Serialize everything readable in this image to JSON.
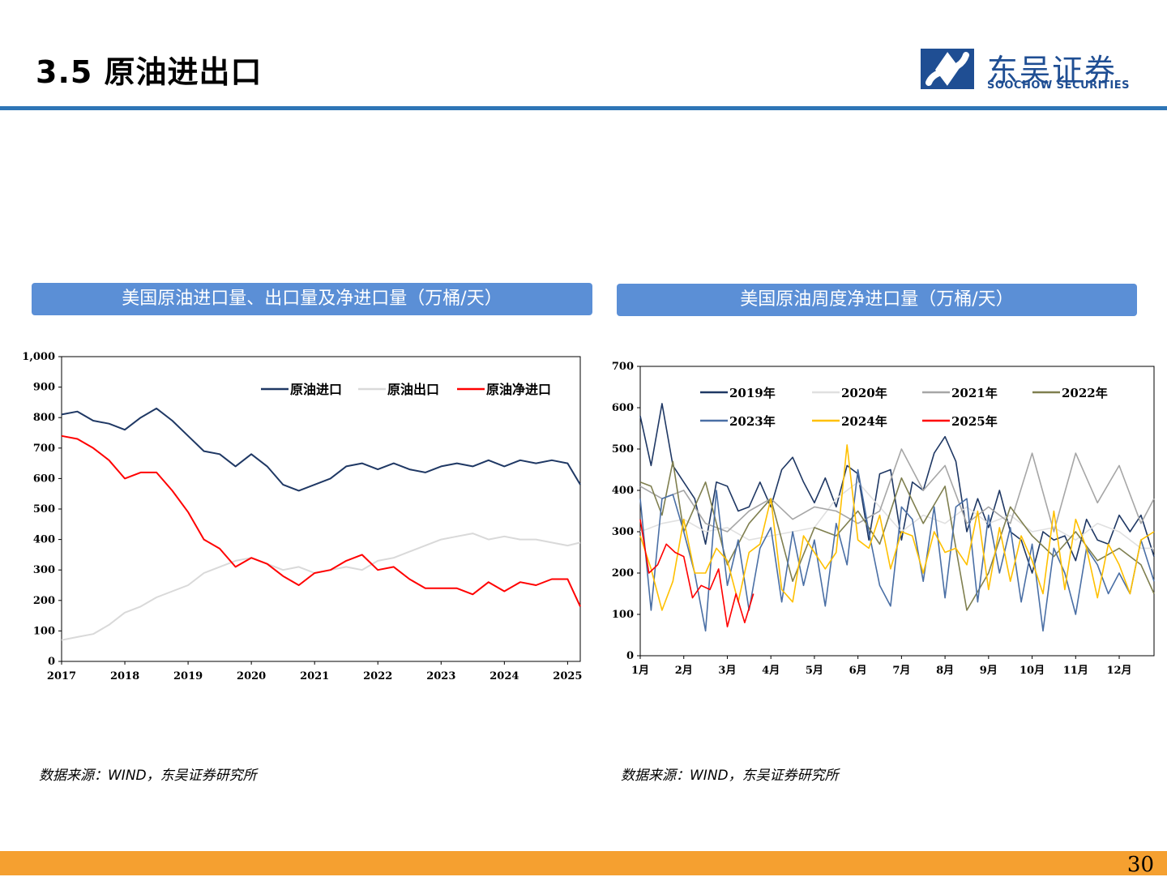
{
  "header": {
    "title": "3.5 原油进出口",
    "logo_cn": "东吴证券",
    "logo_en": "SOOCHOW SECURITIES",
    "rule_color": "#2e75b6"
  },
  "panels": [
    {
      "title": "美国原油进口量、出口量及净进口量（万桶/天）",
      "source": "数据来源：WIND，东吴证券研究所"
    },
    {
      "title": "美国原油周度净进口量（万桶/天）",
      "source": "数据来源：WIND，东吴证券研究所"
    }
  ],
  "footer": {
    "page_number": "30",
    "bar_color": "#f5a030"
  },
  "chart_data": [
    {
      "type": "line",
      "xlabel": "",
      "ylabel": "",
      "x_ticks": [
        "2017",
        "2018",
        "2019",
        "2020",
        "2021",
        "2022",
        "2023",
        "2024",
        "2025"
      ],
      "xlim": [
        2017.0,
        2025.2
      ],
      "ylim": [
        0,
        1000
      ],
      "y_ticks": [
        "0",
        "100",
        "200",
        "300",
        "400",
        "500",
        "600",
        "700",
        "800",
        "900",
        "1,000"
      ],
      "legend": "top-right",
      "grid": false,
      "series": [
        {
          "name": "原油进口",
          "color": "#1f3864",
          "x": [
            2017.0,
            2017.25,
            2017.5,
            2017.75,
            2018.0,
            2018.25,
            2018.5,
            2018.75,
            2019.0,
            2019.25,
            2019.5,
            2019.75,
            2020.0,
            2020.25,
            2020.5,
            2020.75,
            2021.0,
            2021.25,
            2021.5,
            2021.75,
            2022.0,
            2022.25,
            2022.5,
            2022.75,
            2023.0,
            2023.25,
            2023.5,
            2023.75,
            2024.0,
            2024.25,
            2024.5,
            2024.75,
            2025.0,
            2025.2
          ],
          "values": [
            810,
            820,
            790,
            780,
            760,
            800,
            830,
            790,
            740,
            690,
            680,
            640,
            680,
            640,
            580,
            560,
            580,
            600,
            640,
            650,
            630,
            650,
            630,
            620,
            640,
            650,
            640,
            660,
            640,
            660,
            650,
            660,
            650,
            580
          ]
        },
        {
          "name": "原油出口",
          "color": "#d9d9d9",
          "x": [
            2017.0,
            2017.25,
            2017.5,
            2017.75,
            2018.0,
            2018.25,
            2018.5,
            2018.75,
            2019.0,
            2019.25,
            2019.5,
            2019.75,
            2020.0,
            2020.25,
            2020.5,
            2020.75,
            2021.0,
            2021.25,
            2021.5,
            2021.75,
            2022.0,
            2022.25,
            2022.5,
            2022.75,
            2023.0,
            2023.25,
            2023.5,
            2023.75,
            2024.0,
            2024.25,
            2024.5,
            2024.75,
            2025.0,
            2025.2
          ],
          "values": [
            70,
            80,
            90,
            120,
            160,
            180,
            210,
            230,
            250,
            290,
            310,
            330,
            340,
            320,
            300,
            310,
            290,
            300,
            310,
            300,
            330,
            340,
            360,
            380,
            400,
            410,
            420,
            400,
            410,
            400,
            400,
            390,
            380,
            390
          ]
        },
        {
          "name": "原油净进口",
          "color": "#ff0000",
          "x": [
            2017.0,
            2017.25,
            2017.5,
            2017.75,
            2018.0,
            2018.25,
            2018.5,
            2018.75,
            2019.0,
            2019.25,
            2019.5,
            2019.75,
            2020.0,
            2020.25,
            2020.5,
            2020.75,
            2021.0,
            2021.25,
            2021.5,
            2021.75,
            2022.0,
            2022.25,
            2022.5,
            2022.75,
            2023.0,
            2023.25,
            2023.5,
            2023.75,
            2024.0,
            2024.25,
            2024.5,
            2024.75,
            2025.0,
            2025.2
          ],
          "values": [
            740,
            730,
            700,
            660,
            600,
            620,
            620,
            560,
            490,
            400,
            370,
            310,
            340,
            320,
            280,
            250,
            290,
            300,
            330,
            350,
            300,
            310,
            270,
            240,
            240,
            240,
            220,
            260,
            230,
            260,
            250,
            270,
            270,
            180
          ]
        }
      ]
    },
    {
      "type": "line",
      "xlabel": "",
      "ylabel": "",
      "x_ticks": [
        "1月",
        "2月",
        "3月",
        "4月",
        "5月",
        "6月",
        "7月",
        "8月",
        "9月",
        "10月",
        "11月",
        "12月"
      ],
      "xlim": [
        1,
        12.8
      ],
      "ylim": [
        0,
        700
      ],
      "y_ticks": [
        "0",
        "100",
        "200",
        "300",
        "400",
        "500",
        "600",
        "700"
      ],
      "legend": "top-left",
      "grid": false,
      "series": [
        {
          "name": "2019年",
          "color": "#1f3864",
          "x": [
            1,
            1.25,
            1.5,
            1.75,
            2,
            2.25,
            2.5,
            2.75,
            3,
            3.25,
            3.5,
            3.75,
            4,
            4.25,
            4.5,
            4.75,
            5,
            5.25,
            5.5,
            5.75,
            6,
            6.25,
            6.5,
            6.75,
            7,
            7.25,
            7.5,
            7.75,
            8,
            8.25,
            8.5,
            8.75,
            9,
            9.25,
            9.5,
            9.75,
            10,
            10.25,
            10.5,
            10.75,
            11,
            11.25,
            11.5,
            11.75,
            12,
            12.25,
            12.5,
            12.8
          ],
          "values": [
            580,
            460,
            610,
            460,
            420,
            380,
            270,
            420,
            410,
            350,
            360,
            420,
            360,
            450,
            480,
            420,
            370,
            430,
            360,
            460,
            440,
            280,
            440,
            450,
            280,
            420,
            400,
            490,
            530,
            470,
            300,
            380,
            310,
            400,
            300,
            280,
            200,
            300,
            280,
            290,
            230,
            330,
            280,
            270,
            340,
            300,
            340,
            240
          ]
        },
        {
          "name": "2020年",
          "color": "#e0e0e0",
          "x": [
            1,
            1.5,
            2,
            2.5,
            3,
            3.5,
            4,
            4.5,
            5,
            5.5,
            6,
            6.5,
            7,
            7.5,
            8,
            8.5,
            9,
            9.5,
            10,
            10.5,
            11,
            11.5,
            12,
            12.5,
            12.8
          ],
          "values": [
            300,
            320,
            330,
            300,
            310,
            280,
            290,
            300,
            310,
            380,
            420,
            360,
            300,
            340,
            320,
            360,
            320,
            340,
            300,
            310,
            280,
            320,
            300,
            260,
            260
          ]
        },
        {
          "name": "2021年",
          "color": "#a6a6a6",
          "x": [
            1,
            1.5,
            2,
            2.5,
            3,
            3.5,
            4,
            4.5,
            5,
            5.5,
            6,
            6.5,
            7,
            7.5,
            8,
            8.5,
            9,
            9.5,
            10,
            10.5,
            11,
            11.5,
            12,
            12.5,
            12.8
          ],
          "values": [
            410,
            380,
            400,
            320,
            300,
            350,
            380,
            330,
            360,
            350,
            320,
            350,
            500,
            400,
            460,
            320,
            360,
            320,
            490,
            300,
            490,
            370,
            460,
            320,
            380
          ]
        },
        {
          "name": "2022年",
          "color": "#7f7f4f",
          "x": [
            1,
            1.25,
            1.5,
            1.75,
            2,
            2.5,
            3,
            3.5,
            4,
            4.5,
            5,
            5.5,
            6,
            6.5,
            7,
            7.5,
            8,
            8.5,
            9,
            9.5,
            10,
            10.5,
            11,
            11.5,
            12,
            12.5,
            12.8
          ],
          "values": [
            420,
            410,
            340,
            470,
            300,
            420,
            220,
            320,
            380,
            180,
            310,
            290,
            350,
            270,
            430,
            320,
            410,
            110,
            200,
            360,
            290,
            240,
            300,
            230,
            260,
            220,
            150
          ]
        },
        {
          "name": "2023年",
          "color": "#4a6fa5",
          "x": [
            1,
            1.25,
            1.5,
            1.75,
            2,
            2.25,
            2.5,
            2.75,
            3,
            3.25,
            3.5,
            3.75,
            4,
            4.25,
            4.5,
            4.75,
            5,
            5.25,
            5.5,
            5.75,
            6,
            6.25,
            6.5,
            6.75,
            7,
            7.25,
            7.5,
            7.75,
            8,
            8.25,
            8.5,
            8.75,
            9,
            9.25,
            9.5,
            9.75,
            10,
            10.25,
            10.5,
            10.75,
            11,
            11.25,
            11.5,
            11.75,
            12,
            12.25,
            12.5,
            12.8
          ],
          "values": [
            380,
            110,
            380,
            390,
            300,
            200,
            60,
            400,
            170,
            280,
            110,
            260,
            310,
            130,
            300,
            170,
            280,
            120,
            320,
            220,
            450,
            300,
            170,
            120,
            360,
            330,
            180,
            360,
            140,
            360,
            380,
            130,
            340,
            200,
            310,
            130,
            270,
            60,
            260,
            200,
            100,
            260,
            220,
            150,
            200,
            150,
            280,
            180
          ]
        },
        {
          "name": "2024年",
          "color": "#ffc000",
          "x": [
            1,
            1.25,
            1.5,
            1.75,
            2,
            2.25,
            2.5,
            2.75,
            3,
            3.25,
            3.5,
            3.75,
            4,
            4.25,
            4.5,
            4.75,
            5,
            5.25,
            5.5,
            5.75,
            6,
            6.25,
            6.5,
            6.75,
            7,
            7.25,
            7.5,
            7.75,
            8,
            8.25,
            8.5,
            8.75,
            9,
            9.25,
            9.5,
            9.75,
            10,
            10.25,
            10.5,
            10.75,
            11,
            11.25,
            11.5,
            11.75,
            12,
            12.25,
            12.5,
            12.8
          ],
          "values": [
            290,
            210,
            110,
            180,
            330,
            200,
            200,
            260,
            230,
            130,
            250,
            270,
            380,
            160,
            130,
            290,
            250,
            210,
            250,
            510,
            280,
            260,
            340,
            210,
            300,
            290,
            200,
            300,
            250,
            260,
            220,
            350,
            160,
            310,
            180,
            290,
            230,
            150,
            350,
            160,
            330,
            260,
            140,
            270,
            220,
            150,
            280,
            300
          ]
        },
        {
          "name": "2025年",
          "color": "#ff0000",
          "x": [
            1,
            1.2,
            1.4,
            1.6,
            1.8,
            2.0,
            2.2,
            2.4,
            2.6,
            2.8,
            3.0,
            3.2,
            3.4,
            3.6
          ],
          "values": [
            330,
            200,
            220,
            270,
            250,
            240,
            140,
            170,
            160,
            210,
            70,
            150,
            80,
            150
          ]
        }
      ]
    }
  ]
}
